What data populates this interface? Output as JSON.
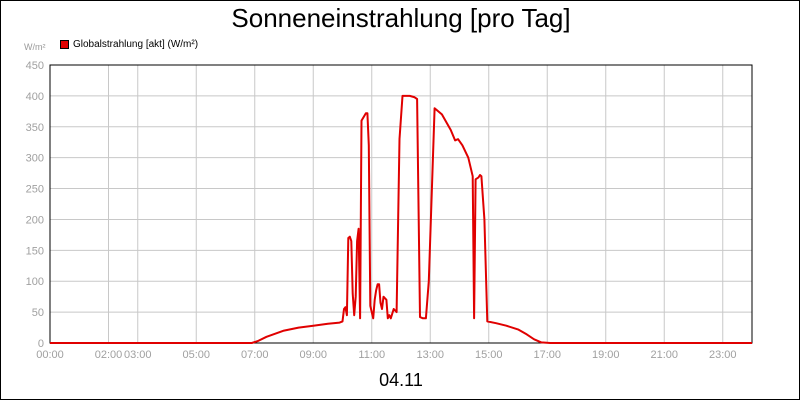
{
  "chart_data": {
    "type": "line",
    "title": "Sonneneinstrahlung [pro Tag]",
    "ylabel": "W/m²",
    "xlabel": "04.11",
    "ylim": [
      0,
      450
    ],
    "yticks": [
      0,
      50,
      100,
      150,
      200,
      250,
      300,
      350,
      400,
      450
    ],
    "xlim_hours": [
      0,
      24
    ],
    "xticks": [
      {
        "h": 0,
        "label": "00:00"
      },
      {
        "h": 2,
        "label": "02:00"
      },
      {
        "h": 3,
        "label": "03:00"
      },
      {
        "h": 5,
        "label": "05:00"
      },
      {
        "h": 7,
        "label": "07:00"
      },
      {
        "h": 9,
        "label": "09:00"
      },
      {
        "h": 11,
        "label": "11:00"
      },
      {
        "h": 13,
        "label": "13:00"
      },
      {
        "h": 15,
        "label": "15:00"
      },
      {
        "h": 17,
        "label": "17:00"
      },
      {
        "h": 19,
        "label": "19:00"
      },
      {
        "h": 21,
        "label": "21:00"
      },
      {
        "h": 23,
        "label": "23:00"
      }
    ],
    "grid": true,
    "legend_position": "top-left",
    "series": [
      {
        "name": "Globalstrahlung [akt] (W/m²)",
        "color": "#e00000",
        "x_hours": [
          0,
          6.9,
          7.1,
          7.4,
          8,
          8.5,
          9,
          9.5,
          9.9,
          10.0,
          10.05,
          10.1,
          10.15,
          10.2,
          10.25,
          10.3,
          10.35,
          10.4,
          10.45,
          10.5,
          10.55,
          10.6,
          10.65,
          10.8,
          10.85,
          10.9,
          10.95,
          11.05,
          11.1,
          11.15,
          11.2,
          11.25,
          11.3,
          11.35,
          11.4,
          11.5,
          11.55,
          11.6,
          11.65,
          11.75,
          11.85,
          11.95,
          12.05,
          12.3,
          12.45,
          12.55,
          12.65,
          12.75,
          12.85,
          12.95,
          13.15,
          13.4,
          13.7,
          13.85,
          13.95,
          14.1,
          14.3,
          14.45,
          14.5,
          14.55,
          14.65,
          14.7,
          14.75,
          14.85,
          14.95,
          15.25,
          15.6,
          16.0,
          16.3,
          16.55,
          16.8,
          17.1,
          17.5,
          24
        ],
        "values": [
          0,
          0,
          3,
          10,
          20,
          25,
          28,
          31,
          33,
          35,
          55,
          58,
          45,
          170,
          172,
          165,
          80,
          45,
          75,
          165,
          185,
          40,
          360,
          372,
          372,
          320,
          60,
          40,
          70,
          85,
          95,
          95,
          65,
          55,
          75,
          70,
          40,
          45,
          40,
          55,
          50,
          330,
          400,
          400,
          398,
          395,
          42,
          40,
          40,
          100,
          380,
          370,
          345,
          328,
          330,
          320,
          300,
          270,
          40,
          265,
          268,
          272,
          270,
          200,
          35,
          32,
          28,
          22,
          14,
          6,
          1,
          0,
          0,
          0
        ]
      }
    ]
  }
}
